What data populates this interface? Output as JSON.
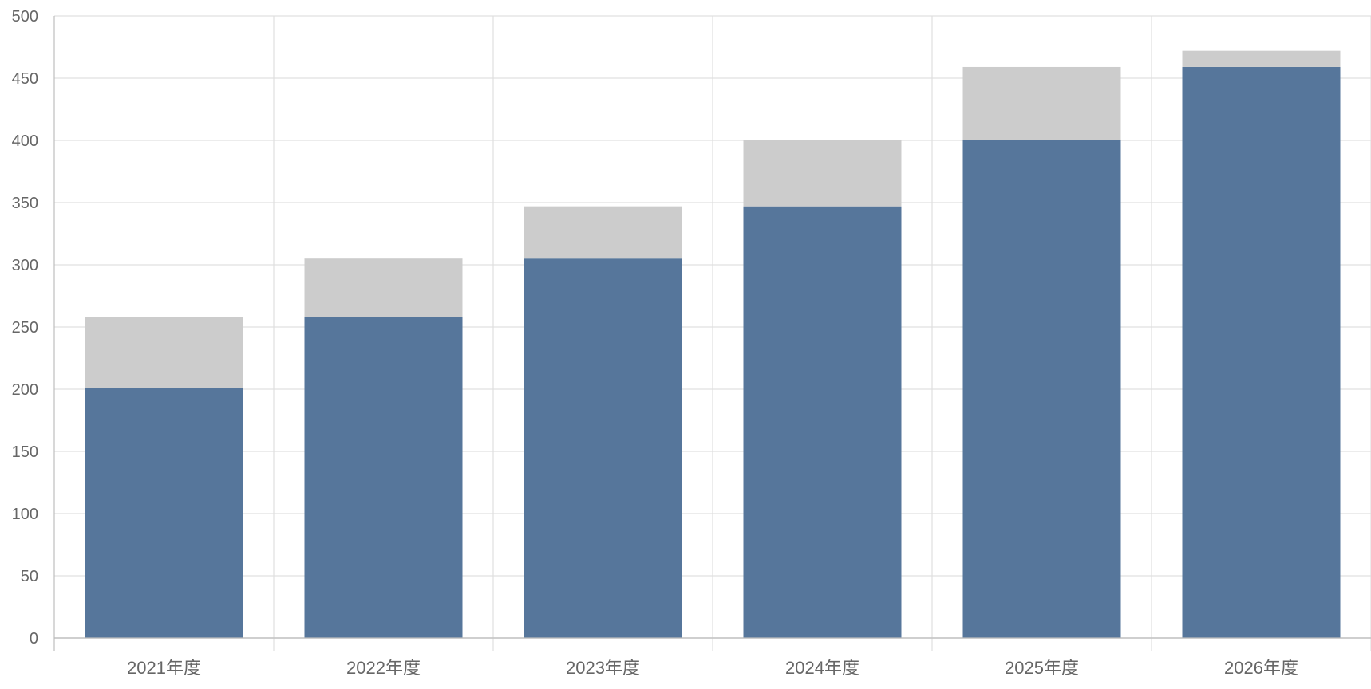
{
  "chart_data": {
    "type": "bar",
    "stacked": true,
    "title": "",
    "xlabel": "",
    "ylabel": "",
    "categories": [
      "2021年度",
      "2022年度",
      "2023年度",
      "2024年度",
      "2025年度",
      "2026年度"
    ],
    "series": [
      {
        "values": [
          201,
          258,
          305,
          347,
          400,
          459
        ],
        "color": "#56769b"
      },
      {
        "values": [
          57,
          47,
          42,
          53,
          59,
          13
        ],
        "color": "#cccccc"
      }
    ],
    "ylim": [
      0,
      500
    ],
    "yticks": [
      0,
      50,
      100,
      150,
      200,
      250,
      300,
      350,
      400,
      450,
      500
    ],
    "grid": true,
    "legend": "none",
    "colors": {
      "grid": "#e0e0e0",
      "axis": "#bdbdbd",
      "tick_text": "#666666"
    }
  }
}
